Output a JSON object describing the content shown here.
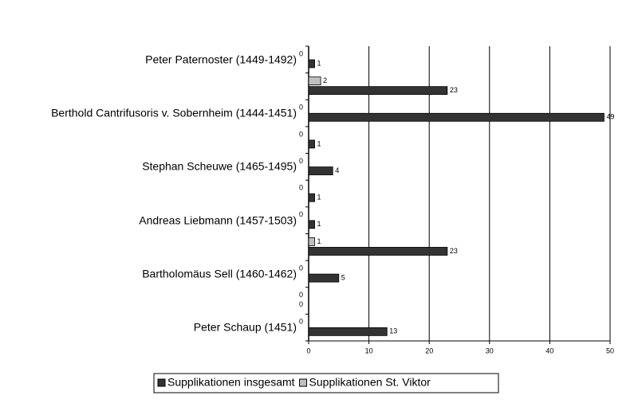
{
  "chart_data": {
    "type": "bar",
    "orientation": "horizontal",
    "categories": [
      "Peter Paternoster (1449-1492)",
      null,
      "Berthold Cantrifusoris v. Sobernheim (1444-1451)",
      null,
      "Stephan Scheuwe (1465-1495)",
      null,
      "Andreas Liebmann (1457-1503)",
      null,
      "Bartholomäus Sell (1460-1462)",
      null,
      "Peter Schaup (1451)"
    ],
    "series": [
      {
        "name": "Supplikationen insgesamt",
        "color": "#333333",
        "values": [
          1,
          23,
          49,
          1,
          4,
          1,
          1,
          23,
          5,
          0,
          13
        ]
      },
      {
        "name": "Supplikationen St. Viktor",
        "color": "#c0c0c0",
        "values": [
          0,
          2,
          0,
          0,
          0,
          0,
          0,
          1,
          0,
          0,
          0
        ]
      }
    ],
    "xlim": [
      0,
      50
    ],
    "xticks": [
      0,
      10,
      20,
      30,
      40,
      50
    ],
    "grid": true,
    "legend": "bottom"
  }
}
